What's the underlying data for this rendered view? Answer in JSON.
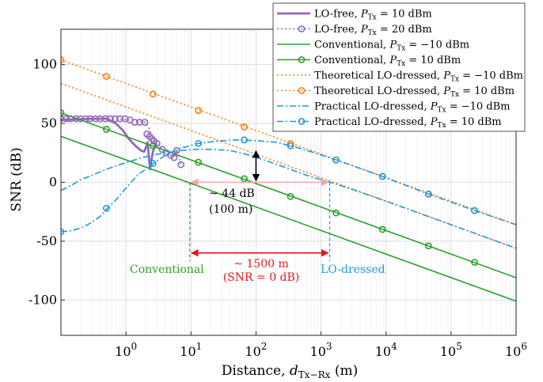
{
  "chart_data": {
    "type": "line",
    "xlabel_main": "Distance, ",
    "xlabel_var": "d",
    "xlabel_sub": "Tx−Rx",
    "xlabel_unit": " (m)",
    "ylabel": "SNR (dB)",
    "xscale": "log",
    "xlim": [
      0.1,
      1000000
    ],
    "ylim": [
      -130,
      130
    ],
    "grid": true,
    "legend_position": "top-right",
    "x_tick_labels": [
      {
        "base": "10",
        "exp": "0",
        "value": 1
      },
      {
        "base": "10",
        "exp": "1",
        "value": 10
      },
      {
        "base": "10",
        "exp": "2",
        "value": 100
      },
      {
        "base": "10",
        "exp": "3",
        "value": 1000
      },
      {
        "base": "10",
        "exp": "4",
        "value": 10000
      },
      {
        "base": "10",
        "exp": "5",
        "value": 100000
      },
      {
        "base": "10",
        "exp": "6",
        "value": 1000000
      }
    ],
    "y_tick_labels": [
      {
        "text": "100",
        "value": 100
      },
      {
        "text": "50",
        "value": 50
      },
      {
        "text": "0",
        "value": 0
      },
      {
        "text": "-50",
        "value": -50
      },
      {
        "text": "-100",
        "value": -100
      }
    ],
    "series": [
      {
        "name": "LO-free, P_Tx = 10 dBm",
        "legend_main": "LO-free, ",
        "legend_power": " = 10 dBm",
        "color": "#9467bd",
        "style": "solid",
        "width": 2.8,
        "marker": "none",
        "points": [
          [
            0.1,
            53
          ],
          [
            0.3,
            54
          ],
          [
            0.5,
            54
          ],
          [
            0.7,
            50
          ],
          [
            0.9,
            44
          ],
          [
            1.1,
            37
          ],
          [
            1.4,
            31
          ],
          [
            1.7,
            27
          ],
          [
            1.9,
            26
          ],
          [
            2.05,
            30
          ],
          [
            2.15,
            34
          ],
          [
            2.25,
            22
          ],
          [
            2.35,
            11
          ],
          [
            2.45,
            18
          ],
          [
            2.6,
            26
          ],
          [
            2.8,
            31
          ],
          [
            3.0,
            33
          ]
        ]
      },
      {
        "name": "LO-free, P_Tx = 20 dBm",
        "legend_main": "LO-free, ",
        "legend_power": " = 20 dBm",
        "color": "#9467bd",
        "style": "dotted",
        "width": 1.5,
        "marker": "circle",
        "points": [
          [
            0.1,
            54
          ],
          [
            0.2,
            54
          ],
          [
            0.4,
            54
          ],
          [
            0.7,
            54
          ],
          [
            1.1,
            53
          ],
          [
            1.5,
            52
          ],
          [
            2.0,
            51
          ],
          [
            2.3,
            45
          ],
          [
            2.5,
            40
          ],
          [
            2.8,
            36
          ],
          [
            3.2,
            31
          ],
          [
            3.7,
            27
          ],
          [
            4.3,
            24
          ],
          [
            4.9,
            23
          ],
          [
            5.5,
            22
          ],
          [
            6.0,
            27
          ],
          [
            6.5,
            22
          ],
          [
            7.0,
            14
          ]
        ],
        "marker_points": [
          [
            0.1,
            54
          ],
          [
            0.12,
            54
          ],
          [
            0.14,
            54
          ],
          [
            0.17,
            54
          ],
          [
            0.2,
            54
          ],
          [
            0.24,
            54
          ],
          [
            0.28,
            54
          ],
          [
            0.34,
            54
          ],
          [
            0.4,
            54
          ],
          [
            0.48,
            54
          ],
          [
            0.57,
            54
          ],
          [
            0.68,
            54
          ],
          [
            0.81,
            54
          ],
          [
            0.97,
            54
          ],
          [
            1.15,
            53
          ],
          [
            1.37,
            51
          ],
          [
            1.63,
            51
          ],
          [
            1.95,
            51
          ],
          [
            2.1,
            41
          ],
          [
            2.3,
            39
          ],
          [
            2.5,
            37
          ],
          [
            2.7,
            35
          ],
          [
            3.0,
            33
          ],
          [
            3.6,
            28
          ],
          [
            4.2,
            25
          ],
          [
            4.9,
            23
          ],
          [
            5.5,
            21
          ],
          [
            6.0,
            27
          ],
          [
            7.0,
            15
          ]
        ]
      },
      {
        "name": "Conventional, P_Tx = −10 dBm",
        "legend_main": "Conventional, ",
        "legend_power": " = −10 dBm",
        "color": "#2ca02c",
        "style": "solid",
        "width": 1.6,
        "marker": "none",
        "points": [
          [
            0.1,
            39
          ],
          [
            1000000,
            -101
          ]
        ]
      },
      {
        "name": "Conventional, P_Tx = 10 dBm",
        "legend_main": "Conventional, ",
        "legend_power": " = 10 dBm",
        "color": "#2ca02c",
        "style": "solid",
        "width": 1.6,
        "marker": "circle",
        "points": [
          [
            0.1,
            59
          ],
          [
            1000000,
            -81
          ]
        ],
        "marker_points": [
          [
            0.1,
            59
          ],
          [
            0.5,
            45
          ],
          [
            2.6,
            31
          ],
          [
            13,
            17
          ],
          [
            66,
            3
          ],
          [
            340,
            -12
          ],
          [
            1700,
            -26
          ],
          [
            8800,
            -40
          ],
          [
            45000,
            -54
          ],
          [
            230000,
            -68
          ]
        ]
      },
      {
        "name": "Theoretical LO-dressed, P_Tx = −10 dBm",
        "legend_main": "Theoretical LO-dressed, ",
        "legend_power": " = −10 dBm",
        "color": "#ff7f0e",
        "style": "dotted",
        "width": 1.6,
        "marker": "none",
        "points": [
          [
            0.1,
            84
          ],
          [
            1000000,
            -56
          ]
        ]
      },
      {
        "name": "Theoretical LO-dressed, P_Tx = 10 dBm",
        "legend_main": "Theoretical LO-dressed, ",
        "legend_power": " = 10 dBm",
        "color": "#ff7f0e",
        "style": "dotted",
        "width": 1.6,
        "marker": "circle",
        "points": [
          [
            0.1,
            104
          ],
          [
            1000000,
            -36
          ]
        ],
        "marker_points": [
          [
            0.1,
            104
          ],
          [
            0.5,
            90
          ],
          [
            2.6,
            75
          ],
          [
            13,
            61
          ],
          [
            66,
            47
          ],
          [
            340,
            33
          ],
          [
            1700,
            19
          ],
          [
            8800,
            5
          ],
          [
            45000,
            -10
          ],
          [
            230000,
            -24
          ]
        ]
      },
      {
        "name": "Practical LO-dressed, P_Tx = −10 dBm",
        "legend_main": "Practical LO-dressed, ",
        "legend_power": " = −10 dBm",
        "color": "#1f9ae0",
        "style": "dashdot",
        "width": 1.6,
        "marker": "none",
        "points": [
          [
            0.1,
            -7
          ],
          [
            0.15,
            -2
          ],
          [
            0.2,
            2
          ],
          [
            0.3,
            6
          ],
          [
            0.5,
            11
          ],
          [
            0.8,
            15
          ],
          [
            1.2,
            18
          ],
          [
            1.8,
            21
          ],
          [
            2.5,
            23
          ],
          [
            4,
            25
          ],
          [
            7,
            27
          ],
          [
            12,
            28
          ],
          [
            20,
            28
          ],
          [
            40,
            27
          ],
          [
            80,
            23
          ],
          [
            150,
            18
          ],
          [
            300,
            12
          ],
          [
            600,
            6
          ],
          [
            1200,
            1
          ],
          [
            3000,
            -6
          ],
          [
            10000,
            -16
          ],
          [
            100000,
            -36
          ],
          [
            1000000,
            -56
          ]
        ]
      },
      {
        "name": "Practical LO-dressed, P_Tx = 10 dBm",
        "legend_main": "Practical LO-dressed, ",
        "legend_power": " = 10 dBm",
        "color": "#1f9ae0",
        "style": "dashdot",
        "width": 1.6,
        "marker": "circle",
        "points": [
          [
            0.1,
            -42
          ],
          [
            0.15,
            -41
          ],
          [
            0.22,
            -38
          ],
          [
            0.3,
            -34
          ],
          [
            0.4,
            -29
          ],
          [
            0.5,
            -23
          ],
          [
            0.7,
            -15
          ],
          [
            1.0,
            -5
          ],
          [
            1.5,
            6
          ],
          [
            2.5,
            15
          ],
          [
            4,
            23
          ],
          [
            7,
            29
          ],
          [
            13,
            33
          ],
          [
            25,
            35
          ],
          [
            50,
            36
          ],
          [
            100,
            35.5
          ],
          [
            200,
            34
          ],
          [
            350,
            31
          ],
          [
            700,
            26
          ],
          [
            1700,
            19
          ],
          [
            8800,
            5
          ],
          [
            45000,
            -10
          ],
          [
            230000,
            -24
          ],
          [
            1000000,
            -36
          ]
        ],
        "marker_points": [
          [
            0.1,
            -42
          ],
          [
            0.5,
            -22
          ],
          [
            2.6,
            16
          ],
          [
            13,
            33
          ],
          [
            66,
            36
          ],
          [
            340,
            31
          ],
          [
            1700,
            19
          ],
          [
            8800,
            5
          ],
          [
            45000,
            -10
          ],
          [
            230000,
            -24
          ]
        ]
      }
    ],
    "annotations": {
      "delta_snr_line1": "~ 44 dB",
      "delta_snr_line2": "(100 m)",
      "delta_dist_line1": "~ 1500 m",
      "delta_dist_line2": "(SNR = 0 dB)",
      "conventional_label": "Conventional",
      "lodressed_label": "LO-dressed",
      "vline_conventional_x": 9.6,
      "vline_lodressed_x": 1360,
      "snr_arrow_x": 100,
      "snr_arrow_y": [
        2,
        26
      ],
      "dist_arrow_y": -60,
      "pink_arrow_y": 0,
      "pink_arrow_x": [
        9.6,
        1360
      ],
      "arrow_red": "#e8191e",
      "arrow_pink": "#f4a6a6"
    }
  }
}
